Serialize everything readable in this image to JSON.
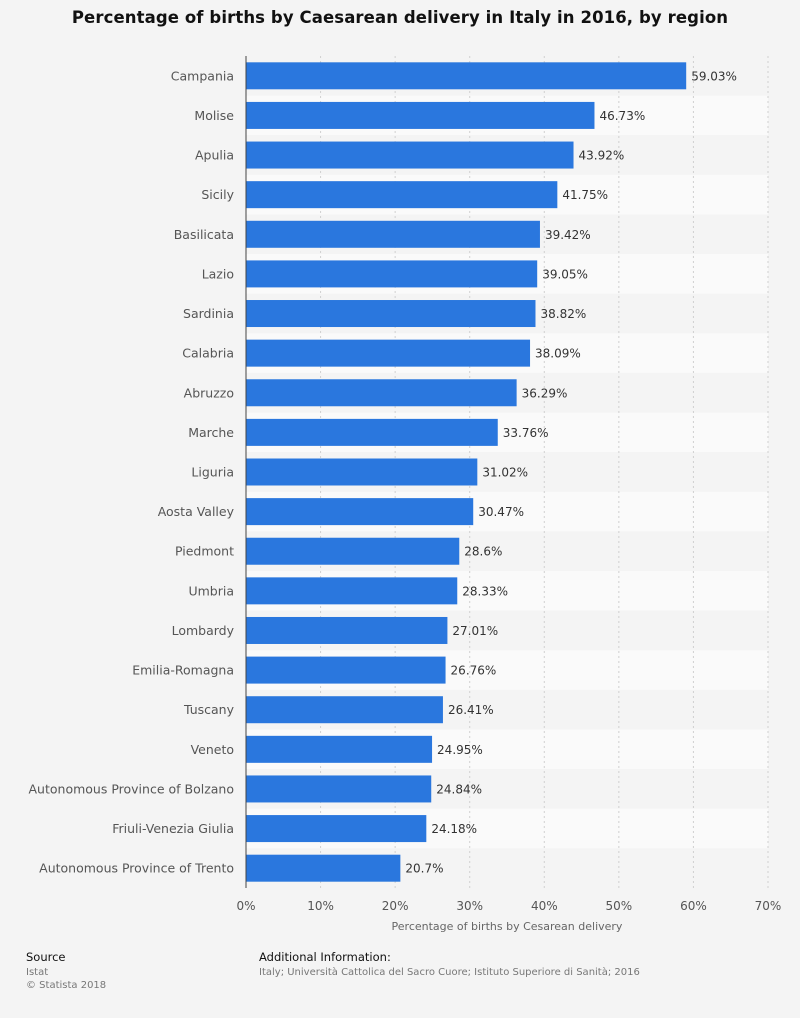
{
  "chart_data": {
    "type": "bar",
    "orientation": "horizontal",
    "title": "Percentage of births by Caesarean delivery in Italy in 2016, by region",
    "xlabel": "Percentage of births by Cesarean delivery",
    "ylabel": "",
    "xlim": [
      0,
      70
    ],
    "ticks": [
      0,
      10,
      20,
      30,
      40,
      50,
      60,
      70
    ],
    "tick_labels": [
      "0%",
      "10%",
      "20%",
      "30%",
      "40%",
      "50%",
      "60%",
      "70%"
    ],
    "grid": true,
    "bar_color": "#2a77de",
    "categories": [
      "Campania",
      "Molise",
      "Apulia",
      "Sicily",
      "Basilicata",
      "Lazio",
      "Sardinia",
      "Calabria",
      "Abruzzo",
      "Marche",
      "Liguria",
      "Aosta Valley",
      "Piedmont",
      "Umbria",
      "Lombardy",
      "Emilia-Romagna",
      "Tuscany",
      "Veneto",
      "Autonomous Province of Bolzano",
      "Friuli-Venezia Giulia",
      "Autonomous Province of Trento"
    ],
    "values": [
      59.03,
      46.73,
      43.92,
      41.75,
      39.42,
      39.05,
      38.82,
      38.09,
      36.29,
      33.76,
      31.02,
      30.47,
      28.6,
      28.33,
      27.01,
      26.76,
      26.41,
      24.95,
      24.84,
      24.18,
      20.7
    ],
    "value_labels": [
      "59.03%",
      "46.73%",
      "43.92%",
      "41.75%",
      "39.42%",
      "39.05%",
      "38.82%",
      "38.09%",
      "36.29%",
      "33.76%",
      "31.02%",
      "30.47%",
      "28.6%",
      "28.33%",
      "27.01%",
      "26.76%",
      "26.41%",
      "24.95%",
      "24.84%",
      "24.18%",
      "20.7%"
    ]
  },
  "footer": {
    "source_heading": "Source",
    "source_name": "Istat",
    "copyright": "© Statista 2018",
    "info_heading": "Additional Information:",
    "info_text": "Italy; Università Cattolica del Sacro Cuore; Istituto Superiore di Sanità; 2016"
  }
}
